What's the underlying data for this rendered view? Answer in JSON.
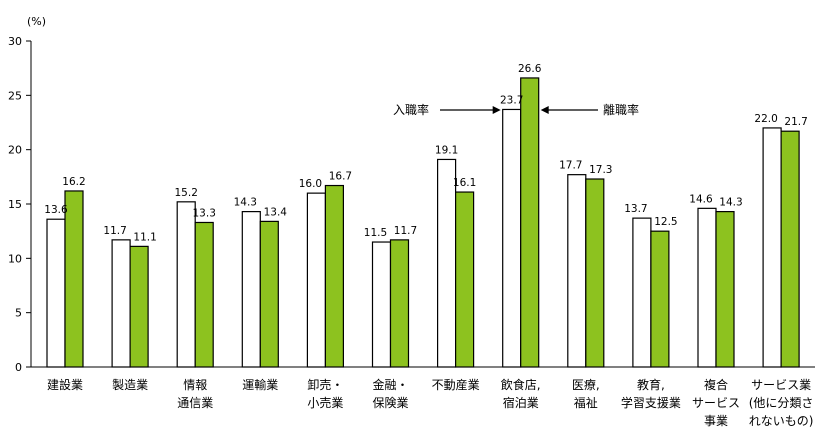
{
  "chart_data": {
    "type": "bar",
    "unit_label": "(%)",
    "ylim": [
      0,
      30
    ],
    "yticks": [
      0,
      5,
      10,
      15,
      20,
      25,
      30
    ],
    "categories": [
      [
        "建設業"
      ],
      [
        "製造業"
      ],
      [
        "情報",
        "通信業"
      ],
      [
        "運輸業"
      ],
      [
        "卸売・",
        "小売業"
      ],
      [
        "金融・",
        "保険業"
      ],
      [
        "不動産業"
      ],
      [
        "飲食店,",
        "宿泊業"
      ],
      [
        "医療,",
        "福祉"
      ],
      [
        "教育,",
        "学習支援業"
      ],
      [
        "複合",
        "サービス",
        "事業"
      ],
      [
        "サービス業",
        "(他に分類さ",
        "れないもの)"
      ]
    ],
    "series": [
      {
        "name": "入職率",
        "color": "#ffffff",
        "values": [
          13.6,
          11.7,
          15.2,
          14.3,
          16.0,
          11.5,
          19.1,
          23.7,
          17.7,
          13.7,
          14.6,
          22.0
        ]
      },
      {
        "name": "離職率",
        "color": "#8dc21f",
        "values": [
          16.2,
          11.1,
          13.3,
          13.4,
          16.7,
          11.7,
          16.1,
          26.6,
          17.3,
          12.5,
          14.3,
          21.7
        ]
      }
    ],
    "value_labels": [
      [
        "13.6",
        "11.7",
        "15.2",
        "14.3",
        "16.0",
        "11.5",
        "19.1",
        "23.7",
        "17.7",
        "13.7",
        "14.6",
        "22.0"
      ],
      [
        "16.2",
        "11.1",
        "13.3",
        "13.4",
        "16.7",
        "11.7",
        "16.1",
        "26.6",
        "17.3",
        "12.5",
        "14.3",
        "21.7"
      ]
    ],
    "annotations": {
      "entry_rate": "入職率",
      "separation_rate": "離職率"
    }
  }
}
